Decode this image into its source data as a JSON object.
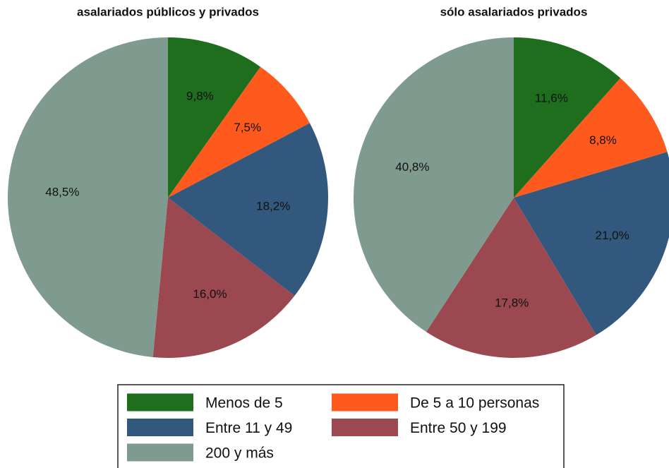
{
  "chart_data": [
    {
      "type": "pie",
      "title": "asalariados públicos y privados",
      "categories": [
        "Menos de 5",
        "De 5 a 10 personas",
        "Entre 11 y 49",
        "Entre 50 y 199",
        "200 y más"
      ],
      "values": [
        9.8,
        7.5,
        18.2,
        16.0,
        48.5
      ],
      "value_labels": [
        "9,8%",
        "7,5%",
        "18,2%",
        "16,0%",
        "48,5%"
      ],
      "colors": [
        "#1e6e1e",
        "#ff5a1e",
        "#33587d",
        "#9b4850",
        "#7f9a8e"
      ]
    },
    {
      "type": "pie",
      "title": "sólo asalariados privados",
      "categories": [
        "Menos de 5",
        "De 5 a 10 personas",
        "Entre 11 y 49",
        "Entre 50 y 199",
        "200 y más"
      ],
      "values": [
        11.6,
        8.8,
        21.0,
        17.8,
        40.8
      ],
      "value_labels": [
        "11,6%",
        "8,8%",
        "21,0%",
        "17,8%",
        "40,8%"
      ],
      "colors": [
        "#1e6e1e",
        "#ff5a1e",
        "#33587d",
        "#9b4850",
        "#7f9a8e"
      ]
    }
  ]
}
